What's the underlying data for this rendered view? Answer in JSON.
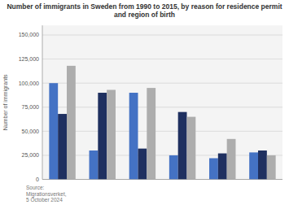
{
  "chart_data": {
    "type": "bar",
    "title": "Number of immigrants in Sweden from 1990 to 2015, by reason for residence permit\nand region of birth",
    "ylabel": "Number of immigrants",
    "annotation": "Source:\nMigrationsverket,\n5 October 2024",
    "categories": [
      null,
      null,
      null,
      null,
      null,
      null
    ],
    "series": [
      {
        "color": "#4472C4",
        "values": [
          100000,
          30000,
          90000,
          25000,
          22000,
          28000
        ]
      },
      {
        "color": "#1F3060",
        "values": [
          68000,
          90000,
          32000,
          70000,
          27000,
          30000
        ]
      },
      {
        "color": "#ADADAD",
        "values": [
          118000,
          93000,
          95000,
          65000,
          42000,
          25000
        ]
      }
    ],
    "ylim": [
      0,
      160000
    ],
    "yticks": [
      0,
      {
        "value": 25000,
        "label": "25,000"
      },
      {
        "value": 50000,
        "label": "50,000"
      },
      {
        "value": 75000,
        "label": "75,000"
      },
      {
        "value": 100000,
        "label": "100,000"
      },
      {
        "value": 125000,
        "label": "125,000"
      },
      {
        "value": 150000,
        "label": "150,000"
      }
    ],
    "grid": true,
    "tick_labels": "y"
  }
}
